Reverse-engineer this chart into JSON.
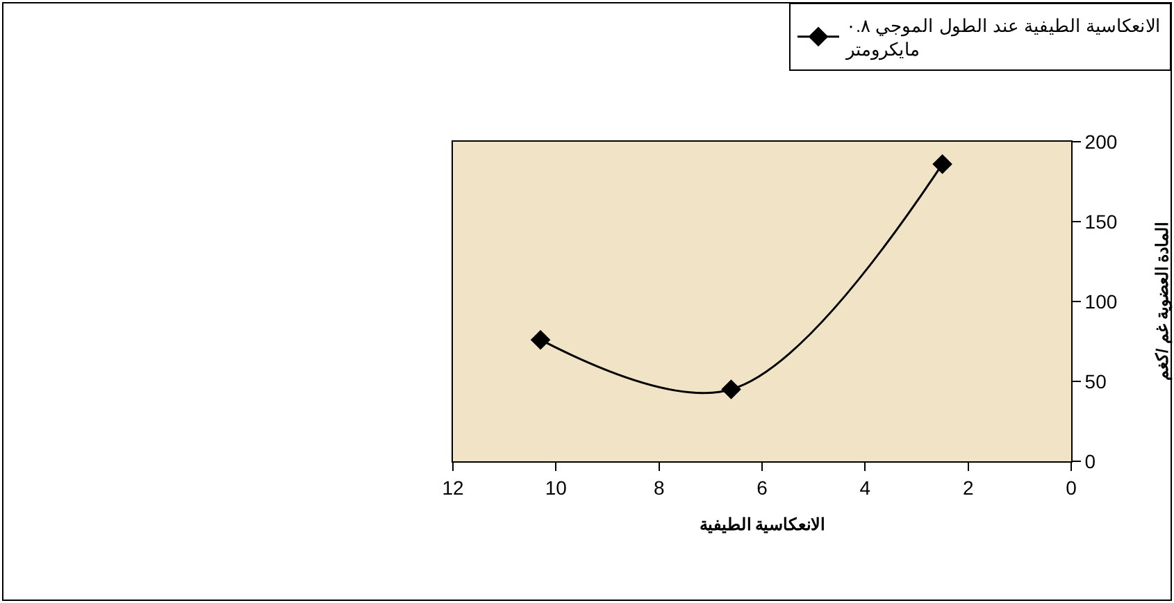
{
  "chart_data": {
    "type": "line",
    "xlabel": "الانعكاسية الطيفية",
    "ylabel": "المادة العضوية غم /كغم",
    "x": [
      10.3,
      6.6,
      2.5
    ],
    "series": [
      {
        "name": "الانعكاسية الطيفية عند الطول الموجي ٠.٨ مايكرومتر",
        "color": "#000000",
        "values": [
          76,
          45,
          186
        ]
      }
    ],
    "xlim": [
      12,
      0
    ],
    "xticks": [
      12,
      10,
      8,
      6,
      4,
      2,
      0
    ],
    "ylim": [
      0,
      200
    ],
    "yticks": [
      0,
      50,
      100,
      150,
      200
    ],
    "grid": false,
    "legend": "top right",
    "marker": "diamond",
    "line_style": "solid"
  }
}
